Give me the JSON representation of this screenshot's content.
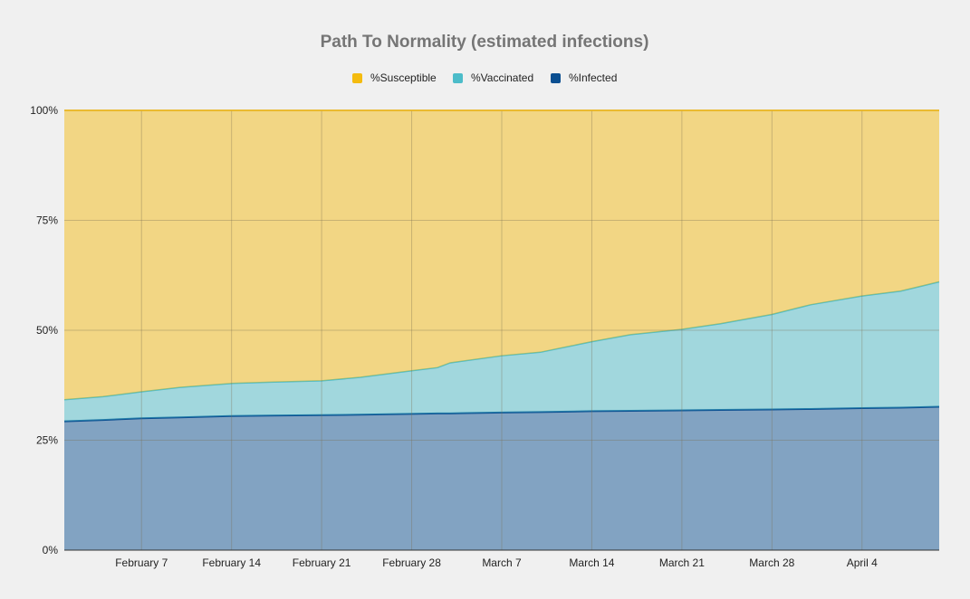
{
  "chart_data": {
    "type": "area",
    "stacked": true,
    "percent_stacked": true,
    "title": "Path To Normality (estimated infections)",
    "xlabel": "",
    "ylabel": "",
    "ylim": [
      0,
      100
    ],
    "y_ticks": [
      "0%",
      "25%",
      "50%",
      "75%",
      "100%"
    ],
    "x_ticks": [
      {
        "date": "2021-02-07",
        "label": "February 7"
      },
      {
        "date": "2021-02-14",
        "label": "February 14"
      },
      {
        "date": "2021-02-21",
        "label": "February 21"
      },
      {
        "date": "2021-02-28",
        "label": "February 28"
      },
      {
        "date": "2021-03-07",
        "label": "March 7"
      },
      {
        "date": "2021-03-14",
        "label": "March 14"
      },
      {
        "date": "2021-03-21",
        "label": "March 21"
      },
      {
        "date": "2021-03-28",
        "label": "March 28"
      },
      {
        "date": "2021-04-04",
        "label": "April 4"
      }
    ],
    "grid": true,
    "legend_position": "top",
    "x": [
      "2021-02-01",
      "2021-02-04",
      "2021-02-07",
      "2021-02-10",
      "2021-02-14",
      "2021-02-17",
      "2021-02-21",
      "2021-02-24",
      "2021-02-28",
      "2021-03-02",
      "2021-03-03",
      "2021-03-07",
      "2021-03-10",
      "2021-03-14",
      "2021-03-17",
      "2021-03-21",
      "2021-03-24",
      "2021-03-28",
      "2021-03-31",
      "2021-04-04",
      "2021-04-07",
      "2021-04-10"
    ],
    "series": [
      {
        "name": "%Infected",
        "color": "#0b4f91",
        "values": [
          29.3,
          29.6,
          30.0,
          30.2,
          30.5,
          30.6,
          30.7,
          30.8,
          31.0,
          31.1,
          31.1,
          31.3,
          31.4,
          31.6,
          31.7,
          31.8,
          31.9,
          32.0,
          32.1,
          32.3,
          32.4,
          32.6
        ]
      },
      {
        "name": "%Vaccinated",
        "color": "#4cbcc9",
        "values": [
          4.9,
          5.3,
          6.0,
          6.8,
          7.4,
          7.6,
          7.8,
          8.5,
          9.8,
          10.4,
          11.5,
          12.9,
          13.6,
          15.8,
          17.3,
          18.4,
          19.6,
          21.6,
          23.7,
          25.5,
          26.5,
          28.4
        ]
      },
      {
        "name": "%Susceptible",
        "color": "#f4bb0f",
        "values": [
          65.8,
          65.1,
          64.0,
          63.0,
          62.1,
          61.8,
          61.5,
          60.7,
          59.2,
          58.5,
          57.4,
          55.8,
          55.0,
          52.6,
          51.0,
          49.8,
          48.5,
          46.4,
          44.2,
          42.2,
          41.1,
          39.0
        ]
      }
    ]
  }
}
